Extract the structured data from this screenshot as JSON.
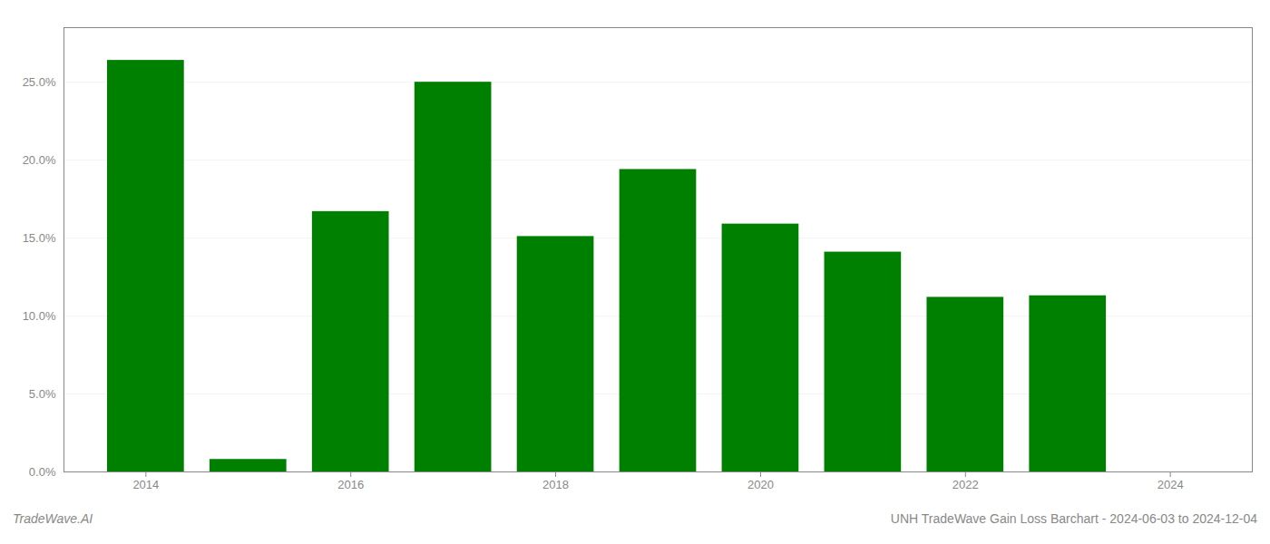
{
  "chart_data": {
    "type": "bar",
    "x": [
      2014,
      2015,
      2016,
      2017,
      2018,
      2019,
      2020,
      2021,
      2022,
      2023
    ],
    "values": [
      0.264,
      0.008,
      0.167,
      0.25,
      0.151,
      0.194,
      0.159,
      0.141,
      0.112,
      0.113
    ],
    "color": "#008000",
    "xlim": [
      2013.2,
      2024.8
    ],
    "xticks": [
      2014,
      2016,
      2018,
      2020,
      2022,
      2024
    ],
    "ylim": [
      0,
      0.285
    ],
    "yticks": [
      {
        "value": 0.0,
        "label": "0.0%"
      },
      {
        "value": 0.05,
        "label": "5.0%"
      },
      {
        "value": 0.1,
        "label": "10.0%"
      },
      {
        "value": 0.15,
        "label": "15.0%"
      },
      {
        "value": 0.2,
        "label": "20.0%"
      },
      {
        "value": 0.25,
        "label": "25.0%"
      }
    ],
    "grid": true,
    "annotations": [
      "TradeWave.AI",
      "UNH TradeWave Gain Loss Barchart - 2024-06-03 to 2024-12-04"
    ]
  }
}
